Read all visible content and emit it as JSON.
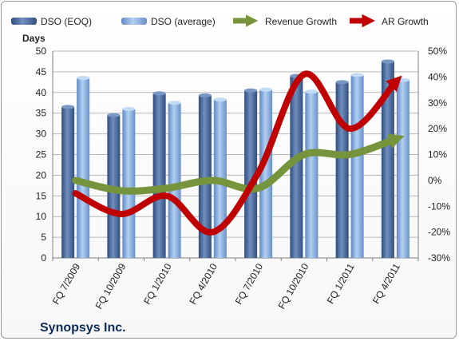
{
  "chart_data": {
    "type": "bar",
    "categories": [
      "FQ 7/2009",
      "FQ 10/2009",
      "FQ 1/2010",
      "FQ 4/2010",
      "FQ 7/2010",
      "FQ 10/2010",
      "FQ 1/2011",
      "FQ 4/2011"
    ],
    "series": [
      {
        "name": "DSO (EOQ)",
        "axis": "left",
        "kind": "bar",
        "color": "#4f6f9f",
        "values": [
          36.5,
          34.5,
          39.8,
          39.3,
          40.5,
          44,
          42.5,
          47.5
        ]
      },
      {
        "name": "DSO (average)",
        "axis": "left",
        "kind": "bar",
        "color": "#86aee0",
        "values": [
          43.5,
          36,
          37.5,
          38.3,
          40.7,
          40.2,
          44.2,
          43
        ]
      },
      {
        "name": "Revenue Growth",
        "axis": "right",
        "kind": "line",
        "color": "#76943c",
        "values": [
          0,
          -4,
          -3,
          0,
          -3,
          10,
          10,
          16
        ]
      },
      {
        "name": "AR Growth",
        "axis": "right",
        "kind": "line",
        "color": "#c00000",
        "values": [
          -5,
          -13,
          -6,
          -20,
          3,
          41,
          20,
          38
        ]
      }
    ],
    "ylabel": "Days",
    "ylim": [
      0,
      50
    ],
    "yticks": [
      "0",
      "5",
      "10",
      "15",
      "20",
      "25",
      "30",
      "35",
      "40",
      "45",
      "50"
    ],
    "y2lim": [
      -30,
      50
    ],
    "y2ticks": [
      "-30%",
      "-20%",
      "-10%",
      "0%",
      "10%",
      "20%",
      "30%",
      "40%",
      "50%"
    ],
    "legend_position": "top",
    "grid": true,
    "company": "Synopsys Inc."
  }
}
